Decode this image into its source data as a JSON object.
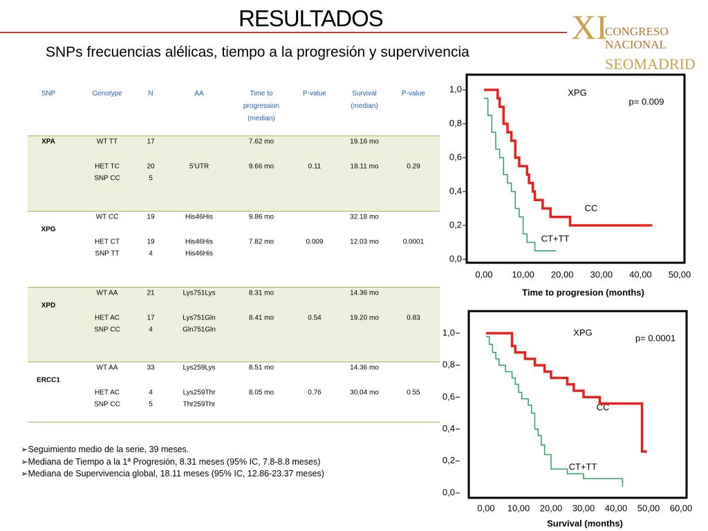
{
  "header": {
    "title": "RESULTADOS",
    "subtitle": "SNPs frecuencias alélicas, tiempo a la progresión y supervivencia"
  },
  "logo": {
    "roman": "XI",
    "line1": "CONGRESO",
    "line2": "NACIONAL",
    "line3": "SEOMADRID"
  },
  "table": {
    "columns": [
      "SNP",
      "Genotype",
      "N",
      "AA",
      "Time to progression (median)",
      "P-value",
      "Survival (median)",
      "P-value"
    ],
    "groups": [
      {
        "snp": "XPA",
        "rows": [
          [
            "WT   TT",
            "17",
            null,
            "7.62 mo",
            null,
            "19.16 mo",
            null
          ],
          [
            "HET TC",
            "20",
            "5’UTR",
            "9.66 mo",
            "0.11",
            "18.11 mo",
            "0.29"
          ],
          [
            "SNP CC",
            "5",
            null,
            null,
            null,
            null,
            null
          ]
        ]
      },
      {
        "snp": "XPG",
        "rows": [
          [
            "WT  CC",
            "19",
            "His46His",
            "9.86 mo",
            null,
            "32.18 mo",
            null
          ],
          [
            "HET CT",
            "19",
            "His46His",
            "7.82 mo",
            "0.009",
            "12.03 mo",
            "0.0001"
          ],
          [
            "SNP TT",
            "4",
            "His46His",
            null,
            null,
            null,
            null
          ]
        ]
      },
      {
        "snp": "XPD",
        "rows": [
          [
            "WT   AA",
            "21",
            "Lys751Lys",
            "8.31 mo",
            null,
            "14.36 mo",
            null
          ],
          [
            "HET AC",
            "17",
            "Lys751Gln",
            "8.41 mo",
            "0.54",
            "19.20 mo",
            "0.83"
          ],
          [
            "SNP CC",
            "4",
            "Gln751Gln",
            null,
            null,
            null,
            null
          ]
        ]
      },
      {
        "snp": "ERCC1",
        "rows": [
          [
            "WT  AA",
            "33",
            "Lys259Lys",
            "8.51 mo",
            null,
            "14.36 mo",
            null
          ],
          [
            "HET AC",
            "4",
            "Lys259Thr",
            "8.05 mo",
            "0.76",
            "30.04 mo",
            "0.55"
          ],
          [
            "SNP CC",
            "5",
            "Thr259Thr",
            null,
            null,
            null,
            null
          ]
        ]
      }
    ]
  },
  "bullets": [
    "Seguimiento medio de la serie, 39 meses.",
    "Mediana de Tiempo a la 1ª Progresión, 8.31 meses (95% IC, 7.8-8.8 meses)",
    "Mediana de Supervivencia global, 18.11 meses (95% IC, 12.86-23.37 meses)"
  ],
  "chart_data": [
    {
      "type": "step",
      "x_label": "Time to progresion (months)",
      "annotations": [
        "XPG",
        "p= 0.009",
        "CC",
        "CT+TT"
      ],
      "xlim": [
        0,
        50
      ],
      "ylim": [
        0,
        1
      ],
      "xticks": [
        {
          "value": 0,
          "label": "0,00"
        },
        {
          "value": 10,
          "label": "10,00"
        },
        {
          "value": 20,
          "label": "20,00"
        },
        {
          "value": 30,
          "label": "30,00"
        },
        {
          "value": 40,
          "label": "40,00"
        },
        {
          "value": 50,
          "label": "50,00"
        }
      ],
      "yticks": [
        {
          "value": 0,
          "label": "0,0"
        },
        {
          "value": 0.2,
          "label": "0,2"
        },
        {
          "value": 0.4,
          "label": "0,4"
        },
        {
          "value": 0.6,
          "label": "0,6"
        },
        {
          "value": 0.8,
          "label": "0,8"
        },
        {
          "value": 1,
          "label": "1,0"
        }
      ],
      "series": [
        {
          "color": "#e8211f",
          "x": [
            0,
            3.5,
            4,
            5,
            6,
            7,
            8,
            9,
            11,
            11.5,
            12.5,
            13,
            15,
            17,
            22,
            43
          ],
          "values": [
            1.0,
            0.95,
            0.9,
            0.8,
            0.75,
            0.7,
            0.6,
            0.55,
            0.5,
            0.45,
            0.4,
            0.35,
            0.3,
            0.25,
            0.2,
            0.2
          ]
        },
        {
          "color": "#2aa35a",
          "x": [
            0,
            1,
            2,
            3,
            4,
            5,
            6,
            7,
            8,
            9,
            10,
            11,
            13,
            18.5
          ],
          "values": [
            0.95,
            0.85,
            0.75,
            0.65,
            0.6,
            0.5,
            0.45,
            0.4,
            0.3,
            0.25,
            0.15,
            0.1,
            0.05,
            0.05
          ]
        }
      ]
    },
    {
      "type": "step",
      "x_label": "Survival (months)",
      "annotations": [
        "XPG",
        "p= 0.0001",
        "CC",
        "CT+TT"
      ],
      "xlim": [
        0,
        60
      ],
      "ylim": [
        0,
        1
      ],
      "xticks": [
        {
          "value": 0,
          "label": "0,00"
        },
        {
          "value": 10,
          "label": "10,00"
        },
        {
          "value": 20,
          "label": "20,00"
        },
        {
          "value": 30,
          "label": "30,00"
        },
        {
          "value": 40,
          "label": "40,00"
        },
        {
          "value": 50,
          "label": "50,00"
        },
        {
          "value": 60,
          "label": "60,00"
        }
      ],
      "yticks": [
        {
          "value": 0,
          "label": "0,0"
        },
        {
          "value": 0.2,
          "label": "0,2"
        },
        {
          "value": 0.4,
          "label": "0,4"
        },
        {
          "value": 0.6,
          "label": "0,6"
        },
        {
          "value": 0.8,
          "label": "0,8"
        },
        {
          "value": 1,
          "label": "1,0"
        }
      ],
      "series": [
        {
          "color": "#e8211f",
          "x": [
            0,
            8,
            9,
            12,
            15,
            18,
            20,
            25,
            27,
            30,
            35,
            48,
            49.5
          ],
          "values": [
            1.0,
            0.92,
            0.88,
            0.84,
            0.8,
            0.76,
            0.72,
            0.68,
            0.64,
            0.6,
            0.56,
            0.26,
            0.26
          ]
        },
        {
          "color": "#2aa35a",
          "x": [
            0,
            1,
            2,
            3,
            4,
            6,
            8,
            9,
            10,
            11,
            13,
            14,
            15,
            16,
            17,
            18,
            20,
            25,
            30,
            42
          ],
          "values": [
            0.98,
            0.93,
            0.88,
            0.84,
            0.8,
            0.76,
            0.72,
            0.68,
            0.63,
            0.59,
            0.55,
            0.5,
            0.4,
            0.36,
            0.3,
            0.24,
            0.15,
            0.12,
            0.09,
            0.04
          ]
        }
      ]
    }
  ]
}
